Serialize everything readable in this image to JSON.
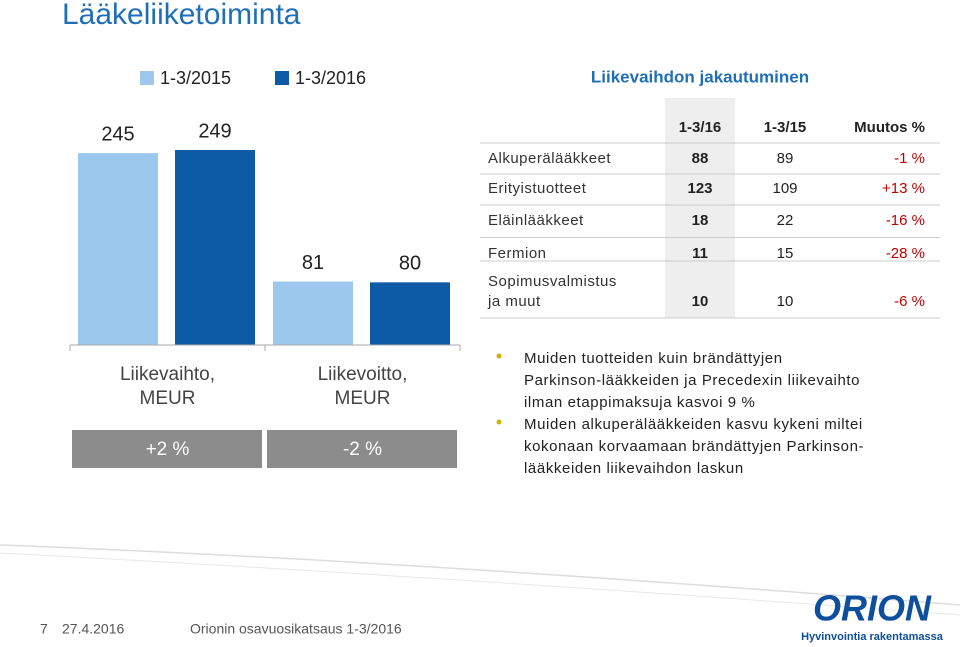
{
  "title": "Lääkeliiketoiminta",
  "chart_data": {
    "type": "bar",
    "categories": [
      [
        "Liikevaihto,",
        "MEUR"
      ],
      [
        "Liikevoitto,",
        "MEUR"
      ]
    ],
    "series": [
      {
        "name": "1-3/2015",
        "color": "#9cc8ee",
        "values": [
          245,
          81
        ]
      },
      {
        "name": "1-3/2016",
        "color": "#0d5aa6",
        "values": [
          249,
          80
        ]
      }
    ],
    "changes": [
      "+2 %",
      "-2 %"
    ]
  },
  "table": {
    "title": "Liikevaihdon jakautuminen",
    "header": [
      "1-3/16",
      "1-3/15",
      "Muutos %"
    ],
    "rows": [
      [
        [
          "Alkuperälääkkeet"
        ],
        88,
        89,
        "-1 %"
      ],
      [
        [
          "Erityistuotteet"
        ],
        123,
        109,
        "+13 %"
      ],
      [
        [
          "Eläinlääkkeet"
        ],
        18,
        22,
        "-16 %"
      ],
      [
        [
          "Fermion"
        ],
        11,
        15,
        "-28 %"
      ],
      [
        [
          "Sopimusvalmistus",
          "ja muut"
        ],
        10,
        10,
        "-6 %"
      ]
    ]
  },
  "bullets": [
    [
      "Muiden tuotteiden kuin brändättyjen",
      "Parkinson-lääkkeiden ja Precedexin liikevaihto",
      "ilman etappimaksuja kasvoi 9 %"
    ],
    [
      "Muiden alkuperälääkkeiden kasvu kykeni miltei",
      "kokonaan korvaamaan brändättyjen Parkinson-",
      "lääkkeiden liikevaihdon laskun"
    ]
  ],
  "footer": {
    "page": "7",
    "date": "27.4.2016",
    "text": "Orionin osavuosikatsaus 1-3/2016"
  },
  "logo": {
    "name": "ORION",
    "tagline": "Hyvinvointia rakentamassa"
  }
}
